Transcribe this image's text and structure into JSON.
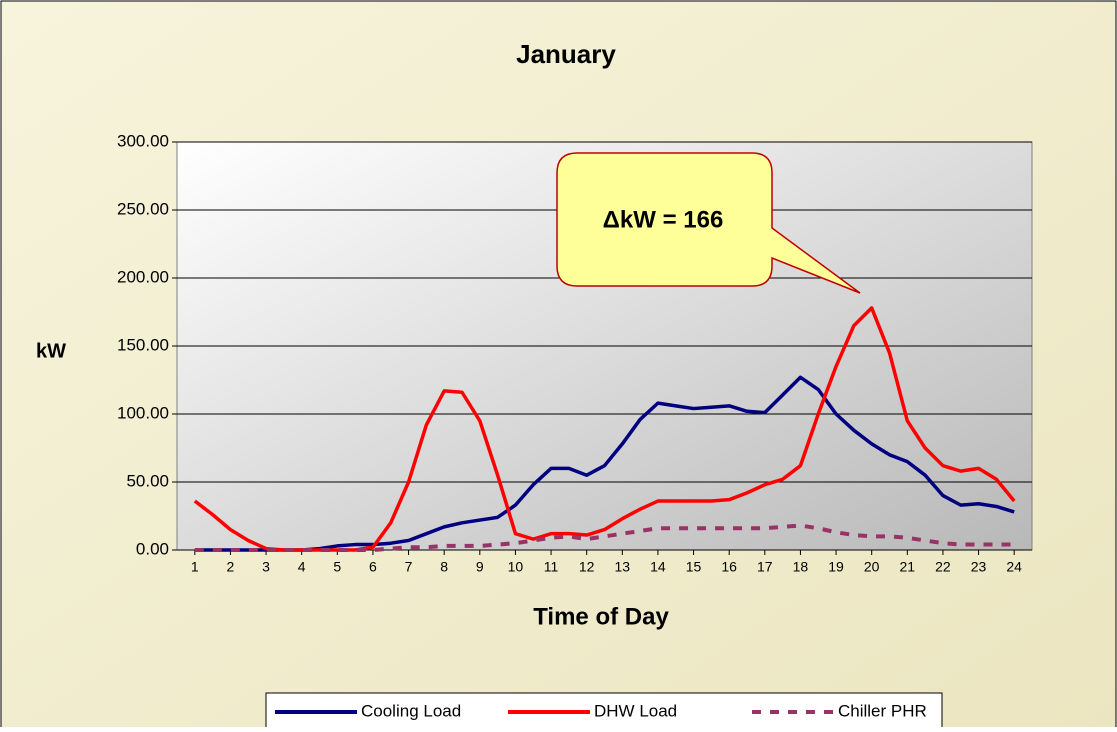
{
  "chart_data": {
    "type": "line",
    "title": "January",
    "x_label": "Time of Day",
    "y_label": "kW",
    "annotation": "ΔkW = 166",
    "x": [
      1,
      1.5,
      2,
      2.5,
      3,
      3.5,
      4,
      4.5,
      5,
      5.5,
      6,
      6.5,
      7,
      7.5,
      8,
      8.5,
      9,
      9.5,
      10,
      10.5,
      11,
      11.5,
      12,
      12.5,
      13,
      13.5,
      14,
      14.5,
      15,
      15.5,
      16,
      16.5,
      17,
      17.5,
      18,
      18.5,
      19,
      19.5,
      20,
      20.5,
      21,
      21.5,
      22,
      22.5,
      23,
      23.5,
      24
    ],
    "xlim": [
      0.5,
      24.5
    ],
    "xticks": [
      1,
      2,
      3,
      4,
      5,
      6,
      7,
      8,
      9,
      10,
      11,
      12,
      13,
      14,
      15,
      16,
      17,
      18,
      19,
      20,
      21,
      22,
      23,
      24
    ],
    "ylim": [
      0,
      300
    ],
    "yticks": [
      {
        "value": 0,
        "label": "0.00"
      },
      {
        "value": 50,
        "label": "50.00"
      },
      {
        "value": 100,
        "label": "100.00"
      },
      {
        "value": 150,
        "label": "150.00"
      },
      {
        "value": 200,
        "label": "200.00"
      },
      {
        "value": 250,
        "label": "250.00"
      },
      {
        "value": 300,
        "label": "300.00"
      }
    ],
    "grid": true,
    "legend": "bottom",
    "series": [
      {
        "name": "Cooling Load",
        "color": "#000080",
        "dash": false,
        "values": [
          0,
          0,
          0,
          0,
          0,
          0,
          0,
          1,
          3,
          4,
          4,
          5,
          7,
          12,
          17,
          20,
          22,
          24,
          33,
          48,
          60,
          60,
          55,
          62,
          78,
          96,
          108,
          106,
          104,
          105,
          106,
          102,
          101,
          114,
          127,
          118,
          100,
          88,
          78,
          70,
          65,
          55,
          40,
          33,
          34,
          32,
          28
        ]
      },
      {
        "name": "DHW Load",
        "color": "#ff0000",
        "dash": false,
        "values": [
          36,
          26,
          15,
          7,
          1,
          0,
          0,
          0,
          0,
          0,
          2,
          20,
          50,
          92,
          117,
          116,
          95,
          55,
          12,
          8,
          12,
          12,
          11,
          15,
          23,
          30,
          36,
          36,
          36,
          36,
          37,
          42,
          48,
          52,
          62,
          100,
          135,
          165,
          178,
          145,
          95,
          75,
          62,
          58,
          60,
          52,
          36
        ]
      },
      {
        "name": "Chiller PHR",
        "color": "#993366",
        "dash": true,
        "values": [
          0,
          0,
          0,
          0,
          0,
          0,
          0,
          0,
          0,
          0,
          0,
          1,
          2,
          2,
          3,
          3,
          3,
          4,
          5,
          7,
          9,
          10,
          8,
          10,
          12,
          14,
          16,
          16,
          16,
          16,
          16,
          16,
          16,
          17,
          18,
          16,
          13,
          11,
          10,
          10,
          9,
          7,
          5,
          4,
          4,
          4,
          4
        ]
      }
    ]
  }
}
